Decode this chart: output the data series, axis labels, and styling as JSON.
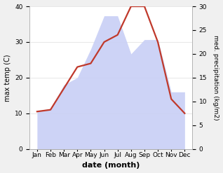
{
  "months": [
    "Jan",
    "Feb",
    "Mar",
    "Apr",
    "May",
    "Jun",
    "Jul",
    "Aug",
    "Sep",
    "Oct",
    "Nov",
    "Dec"
  ],
  "temp": [
    10.5,
    11.0,
    17.0,
    23.0,
    24.0,
    30.0,
    32.0,
    40.0,
    40.0,
    30.0,
    14.0,
    10.0
  ],
  "precip": [
    8.0,
    8.5,
    13.5,
    15.0,
    21.0,
    28.0,
    28.0,
    20.0,
    23.0,
    23.0,
    12.0,
    12.0
  ],
  "temp_color": "#c0392b",
  "precip_fill_color": "#c8cff5",
  "ylabel_left": "max temp (C)",
  "ylabel_right": "med. precipitation (kg/m2)",
  "xlabel": "date (month)",
  "ylim_left": [
    0,
    40
  ],
  "ylim_right": [
    0,
    30
  ],
  "yticks_left": [
    0,
    10,
    20,
    30,
    40
  ],
  "yticks_right": [
    0,
    5,
    10,
    15,
    20,
    25,
    30
  ],
  "background_color": "#f0f0f0",
  "plot_bg_color": "#ffffff",
  "temp_linewidth": 1.6,
  "label_fontsize": 7.5,
  "tick_fontsize": 6.5
}
